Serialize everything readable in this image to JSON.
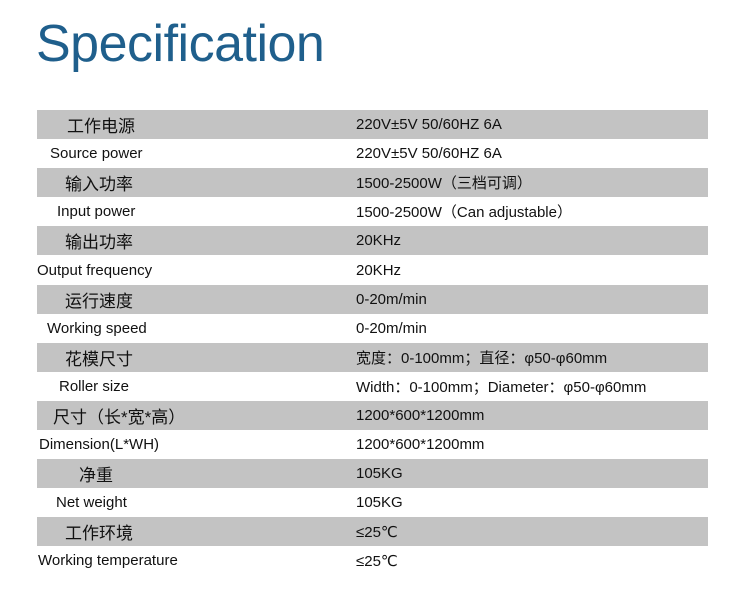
{
  "title": "Specification",
  "rows": [
    {
      "label": "工作电源",
      "value": "220V±5V 50/60HZ 6A"
    },
    {
      "label": "Source power",
      "value": "220V±5V 50/60HZ 6A"
    },
    {
      "label": "输入功率",
      "value": "1500-2500W（三档可调）"
    },
    {
      "label": "Input power",
      "value": "1500-2500W（Can adjustable）"
    },
    {
      "label": "输出功率",
      "value": "20KHz"
    },
    {
      "label": "Output frequency",
      "value": "20KHz"
    },
    {
      "label": "运行速度",
      "value": "0-20m/min"
    },
    {
      "label": "Working speed",
      "value": "0-20m/min"
    },
    {
      "label": "花模尺寸",
      "value": "宽度：0-100mm；直径：φ50-φ60mm"
    },
    {
      "label": "Roller size",
      "value": "Width：0-100mm；Diameter：φ50-φ60mm"
    },
    {
      "label": "尺寸（长*宽*高）",
      "value": "1200*600*1200mm"
    },
    {
      "label": "Dimension(L*WH)",
      "value": "1200*600*1200mm"
    },
    {
      "label": "净重",
      "value": "105KG"
    },
    {
      "label": "Net weight",
      "value": "105KG"
    },
    {
      "label": "工作环境",
      "value": "≤25℃"
    },
    {
      "label": "Working temperature",
      "value": "≤25℃"
    }
  ]
}
